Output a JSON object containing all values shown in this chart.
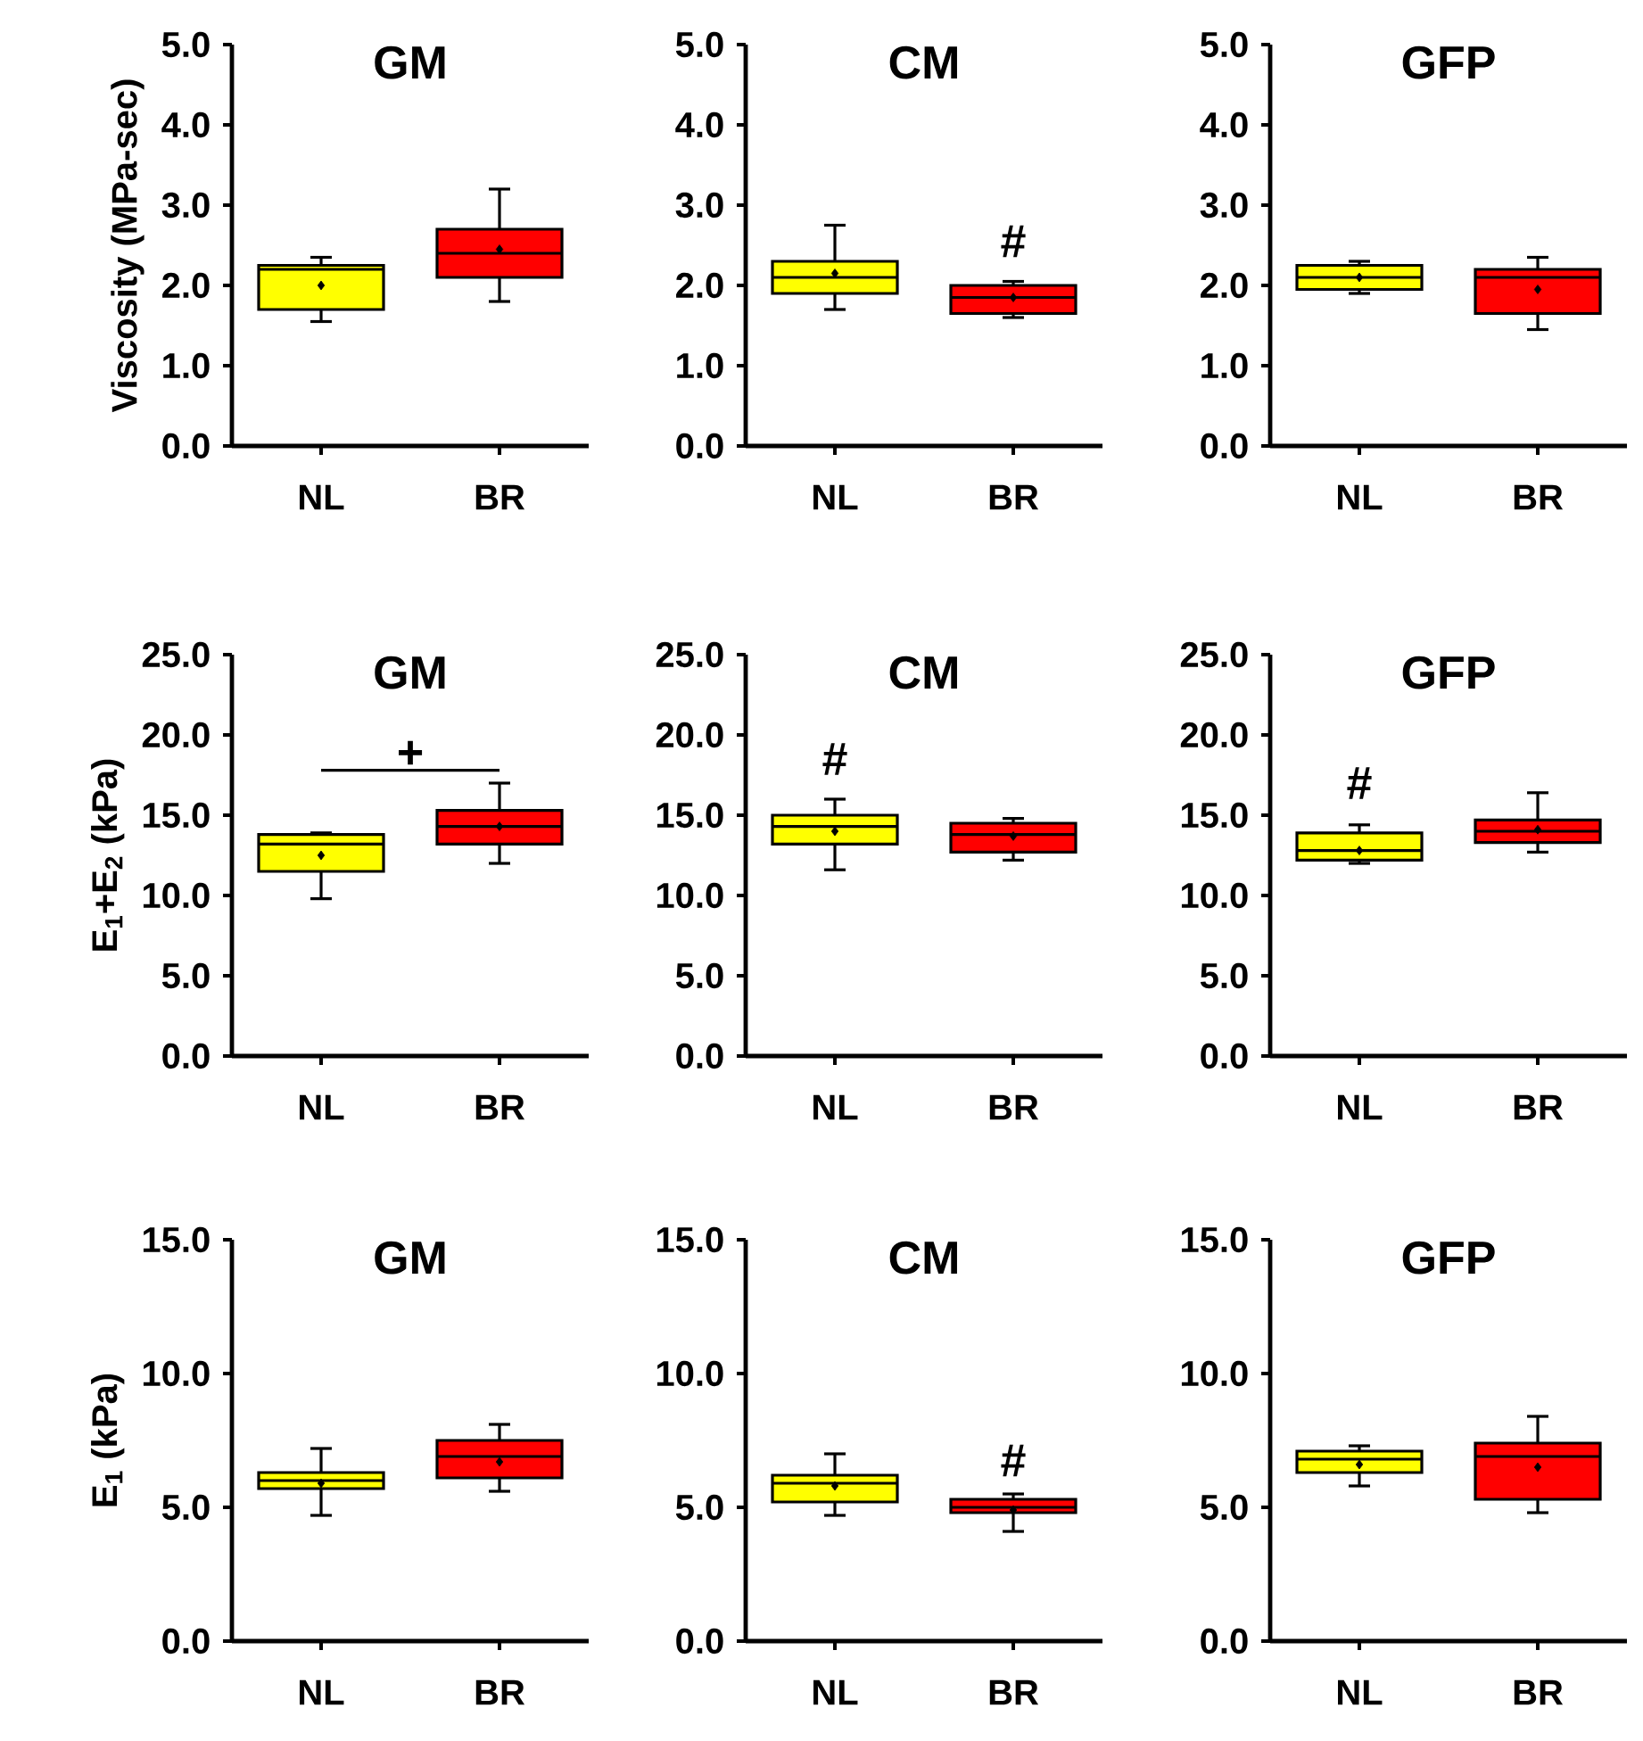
{
  "chart_data": [
    {
      "type": "box",
      "title": "GM",
      "ylabel": "Viscosity (MPa-sec)",
      "categories": [
        "NL",
        "BR"
      ],
      "colors": [
        "#ffff00",
        "#ff0000"
      ],
      "ylim": [
        0,
        5
      ],
      "yticks": [
        {
          "value": 0,
          "label": "0.0"
        },
        {
          "value": 1,
          "label": "1.0"
        },
        {
          "value": 2,
          "label": "2.0"
        },
        {
          "value": 3,
          "label": "3.0"
        },
        {
          "value": 4,
          "label": "4.0"
        },
        {
          "value": 5,
          "label": "5.0"
        }
      ],
      "boxes": [
        {
          "low": 1.55,
          "q1": 1.7,
          "median": 2.2,
          "q3": 2.25,
          "high": 2.35,
          "mean": 2.0
        },
        {
          "low": 1.8,
          "q1": 2.1,
          "median": 2.4,
          "q3": 2.7,
          "high": 3.2,
          "mean": 2.45
        }
      ]
    },
    {
      "type": "box",
      "title": "CM",
      "categories": [
        "NL",
        "BR"
      ],
      "colors": [
        "#ffff00",
        "#ff0000"
      ],
      "ylim": [
        0,
        5
      ],
      "yticks": [
        {
          "value": 0,
          "label": "0.0"
        },
        {
          "value": 1,
          "label": "1.0"
        },
        {
          "value": 2,
          "label": "2.0"
        },
        {
          "value": 3,
          "label": "3.0"
        },
        {
          "value": 4,
          "label": "4.0"
        },
        {
          "value": 5,
          "label": "5.0"
        }
      ],
      "boxes": [
        {
          "low": 1.7,
          "q1": 1.9,
          "median": 2.1,
          "q3": 2.3,
          "high": 2.75,
          "mean": 2.15
        },
        {
          "low": 1.6,
          "q1": 1.65,
          "median": 1.85,
          "q3": 2.0,
          "high": 2.05,
          "mean": 1.85
        }
      ],
      "annotations": [
        "#"
      ]
    },
    {
      "type": "box",
      "title": "GFP",
      "categories": [
        "NL",
        "BR"
      ],
      "colors": [
        "#ffff00",
        "#ff0000"
      ],
      "ylim": [
        0,
        5
      ],
      "yticks": [
        {
          "value": 0,
          "label": "0.0"
        },
        {
          "value": 1,
          "label": "1.0"
        },
        {
          "value": 2,
          "label": "2.0"
        },
        {
          "value": 3,
          "label": "3.0"
        },
        {
          "value": 4,
          "label": "4.0"
        },
        {
          "value": 5,
          "label": "5.0"
        }
      ],
      "boxes": [
        {
          "low": 1.9,
          "q1": 1.95,
          "median": 2.1,
          "q3": 2.25,
          "high": 2.3,
          "mean": 2.1
        },
        {
          "low": 1.45,
          "q1": 1.65,
          "median": 2.1,
          "q3": 2.2,
          "high": 2.35,
          "mean": 1.95
        }
      ]
    },
    {
      "type": "box",
      "title": "GM",
      "ylabel": "E$_{1}$+E$_{2}$ (kPa)",
      "categories": [
        "NL",
        "BR"
      ],
      "colors": [
        "#ffff00",
        "#ff0000"
      ],
      "ylim": [
        0,
        25
      ],
      "yticks": [
        {
          "value": 0,
          "label": "0.0"
        },
        {
          "value": 5,
          "label": "5.0"
        },
        {
          "value": 10,
          "label": "10.0"
        },
        {
          "value": 15,
          "label": "15.0"
        },
        {
          "value": 20,
          "label": "20.0"
        },
        {
          "value": 25,
          "label": "25.0"
        }
      ],
      "boxes": [
        {
          "low": 9.8,
          "q1": 11.5,
          "median": 13.2,
          "q3": 13.8,
          "high": 13.9,
          "mean": 12.5
        },
        {
          "low": 12.0,
          "q1": 13.2,
          "median": 14.3,
          "q3": 15.3,
          "high": 17.0,
          "mean": 14.3
        }
      ],
      "annotations": [
        "+"
      ]
    },
    {
      "type": "box",
      "title": "CM",
      "categories": [
        "NL",
        "BR"
      ],
      "colors": [
        "#ffff00",
        "#ff0000"
      ],
      "ylim": [
        0,
        25
      ],
      "yticks": [
        {
          "value": 0,
          "label": "0.0"
        },
        {
          "value": 5,
          "label": "5.0"
        },
        {
          "value": 10,
          "label": "10.0"
        },
        {
          "value": 15,
          "label": "15.0"
        },
        {
          "value": 20,
          "label": "20.0"
        },
        {
          "value": 25,
          "label": "25.0"
        }
      ],
      "boxes": [
        {
          "low": 11.6,
          "q1": 13.2,
          "median": 14.3,
          "q3": 15.0,
          "high": 16.0,
          "mean": 14.0
        },
        {
          "low": 12.2,
          "q1": 12.7,
          "median": 13.8,
          "q3": 14.5,
          "high": 14.8,
          "mean": 13.7
        }
      ],
      "annotations": [
        "#"
      ]
    },
    {
      "type": "box",
      "title": "GFP",
      "categories": [
        "NL",
        "BR"
      ],
      "colors": [
        "#ffff00",
        "#ff0000"
      ],
      "ylim": [
        0,
        25
      ],
      "yticks": [
        {
          "value": 0,
          "label": "0.0"
        },
        {
          "value": 5,
          "label": "5.0"
        },
        {
          "value": 10,
          "label": "10.0"
        },
        {
          "value": 15,
          "label": "15.0"
        },
        {
          "value": 20,
          "label": "20.0"
        },
        {
          "value": 25,
          "label": "25.0"
        }
      ],
      "boxes": [
        {
          "low": 12.0,
          "q1": 12.2,
          "median": 12.8,
          "q3": 13.9,
          "high": 14.4,
          "mean": 12.8
        },
        {
          "low": 12.7,
          "q1": 13.3,
          "median": 14.0,
          "q3": 14.7,
          "high": 16.4,
          "mean": 14.1
        }
      ],
      "annotations": [
        "#"
      ]
    },
    {
      "type": "box",
      "title": "GM",
      "ylabel": "E$_{1}$ (kPa)",
      "categories": [
        "NL",
        "BR"
      ],
      "colors": [
        "#ffff00",
        "#ff0000"
      ],
      "ylim": [
        0,
        15
      ],
      "yticks": [
        {
          "value": 0,
          "label": "0.0"
        },
        {
          "value": 5,
          "label": "5.0"
        },
        {
          "value": 10,
          "label": "10.0"
        },
        {
          "value": 15,
          "label": "15.0"
        }
      ],
      "boxes": [
        {
          "low": 4.7,
          "q1": 5.7,
          "median": 6.0,
          "q3": 6.3,
          "high": 7.2,
          "mean": 5.9
        },
        {
          "low": 5.6,
          "q1": 6.1,
          "median": 6.9,
          "q3": 7.5,
          "high": 8.1,
          "mean": 6.7
        }
      ]
    },
    {
      "type": "box",
      "title": "CM",
      "categories": [
        "NL",
        "BR"
      ],
      "colors": [
        "#ffff00",
        "#ff0000"
      ],
      "ylim": [
        0,
        15
      ],
      "yticks": [
        {
          "value": 0,
          "label": "0.0"
        },
        {
          "value": 5,
          "label": "5.0"
        },
        {
          "value": 10,
          "label": "10.0"
        },
        {
          "value": 15,
          "label": "15.0"
        }
      ],
      "boxes": [
        {
          "low": 4.7,
          "q1": 5.2,
          "median": 5.9,
          "q3": 6.2,
          "high": 7.0,
          "mean": 5.8
        },
        {
          "low": 4.1,
          "q1": 4.8,
          "median": 5.0,
          "q3": 5.3,
          "high": 5.5,
          "mean": 4.9
        }
      ],
      "annotations": [
        "#"
      ]
    },
    {
      "type": "box",
      "title": "GFP",
      "categories": [
        "NL",
        "BR"
      ],
      "colors": [
        "#ffff00",
        "#ff0000"
      ],
      "ylim": [
        0,
        15
      ],
      "yticks": [
        {
          "value": 0,
          "label": "0.0"
        },
        {
          "value": 5,
          "label": "5.0"
        },
        {
          "value": 10,
          "label": "10.0"
        },
        {
          "value": 15,
          "label": "15.0"
        }
      ],
      "boxes": [
        {
          "low": 5.8,
          "q1": 6.3,
          "median": 6.8,
          "q3": 7.1,
          "high": 7.3,
          "mean": 6.6
        },
        {
          "low": 4.8,
          "q1": 5.3,
          "median": 6.9,
          "q3": 7.4,
          "high": 8.4,
          "mean": 6.5
        }
      ]
    }
  ]
}
